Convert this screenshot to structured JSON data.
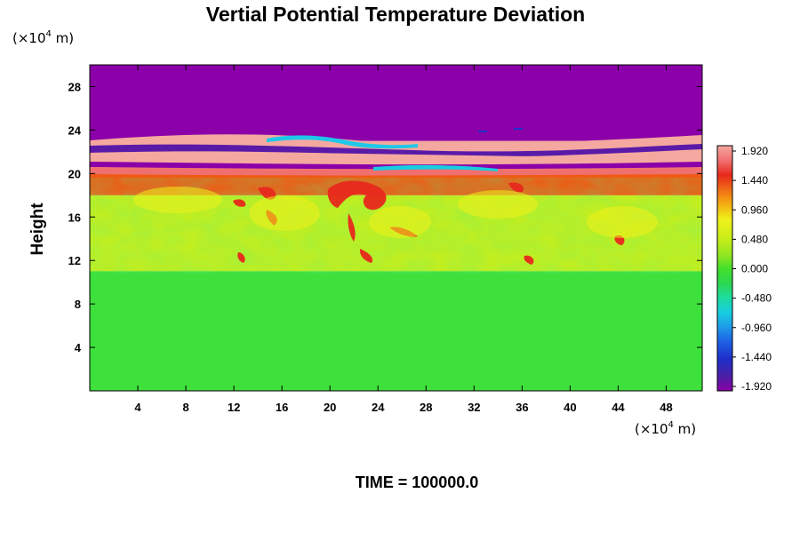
{
  "chart_data": {
    "type": "heatmap",
    "title": "Vertial Potential Temperature Deviation",
    "ylabel": "Height",
    "xunit": {
      "prefix": "(×10",
      "exp": "4",
      "suffix": " m)"
    },
    "yunit": {
      "prefix": "(×10",
      "exp": "4",
      "suffix": " m)"
    },
    "xlim": [
      0,
      51
    ],
    "ylim": [
      0,
      30
    ],
    "xticks": [
      4,
      8,
      12,
      16,
      20,
      24,
      28,
      32,
      36,
      40,
      44,
      48
    ],
    "yticks": [
      4,
      8,
      12,
      16,
      20,
      24,
      28
    ],
    "colorbar": {
      "labels": [
        "1.920",
        "1.440",
        "0.960",
        "0.480",
        "0.000",
        "-0.480",
        "-0.960",
        "-1.440",
        "-1.920"
      ],
      "range": [
        -1.92,
        1.92
      ],
      "colors": [
        "#8b00a8",
        "#4b1fa6",
        "#1f2fc8",
        "#1e60e6",
        "#1e9bea",
        "#17cde0",
        "#1edca0",
        "#2cd84e",
        "#44e02a",
        "#8ee622",
        "#c8ee1a",
        "#f0f01a",
        "#f8c814",
        "#f59a12",
        "#ef5a14",
        "#e8281c",
        "#f07070",
        "#f4a8a0"
      ]
    },
    "layers": [
      {
        "y_from": 0,
        "y_to": 11,
        "value": -0.15
      },
      {
        "y_from": 11,
        "y_to": 18,
        "value": 0.4
      },
      {
        "y_from": 18,
        "y_to": 20,
        "value": 1.2
      },
      {
        "y_from": 20,
        "y_to": 23,
        "value": 1.92
      },
      {
        "y_from": 23,
        "y_to": 30,
        "value": -1.92
      }
    ],
    "annotation": "TIME = 100000.0"
  }
}
